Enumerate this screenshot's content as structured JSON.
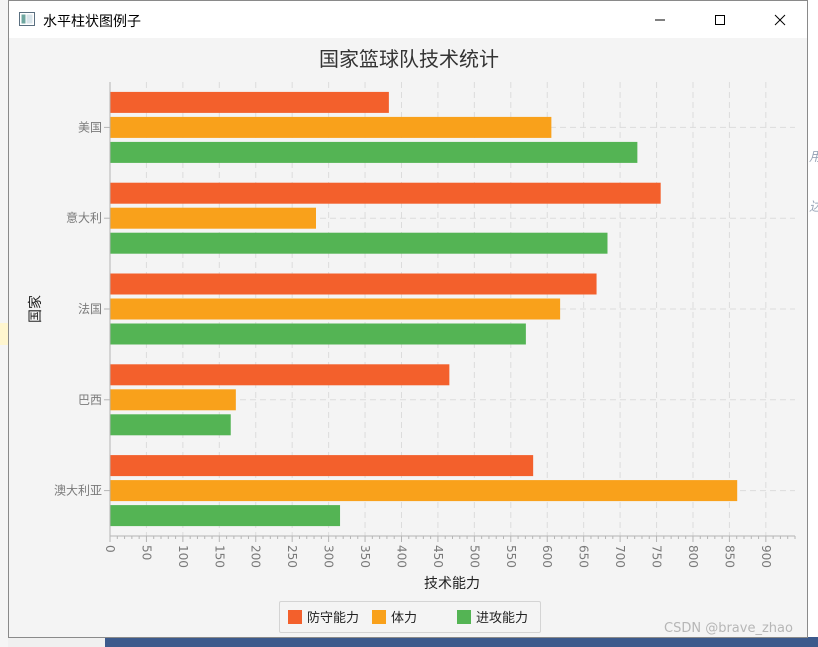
{
  "window": {
    "title": "水平柱状图例子",
    "icon": "app-window-icon",
    "controls": [
      "minimize-icon",
      "maximize-icon",
      "close-icon"
    ]
  },
  "chart_data": {
    "type": "bar",
    "orientation": "horizontal",
    "title": "国家篮球队技术统计",
    "xlabel": "技术能力",
    "ylabel": "国家",
    "categories": [
      "澳大利亚",
      "巴西",
      "法国",
      "意大利",
      "美国"
    ],
    "series": [
      {
        "name": "防守能力",
        "color": "#f3602c",
        "values": [
          580,
          465,
          667,
          755,
          382
        ]
      },
      {
        "name": "体力",
        "color": "#f9a11b",
        "values": [
          860,
          172,
          617,
          282,
          605
        ]
      },
      {
        "name": "进攻能力",
        "color": "#54b454",
        "values": [
          315,
          165,
          570,
          682,
          723
        ]
      }
    ],
    "xlim": [
      0,
      940
    ],
    "xticks": [
      0,
      50,
      100,
      150,
      200,
      250,
      300,
      350,
      400,
      450,
      500,
      550,
      600,
      650,
      700,
      750,
      800,
      850,
      900
    ],
    "grid": true,
    "legend_position": "bottom"
  },
  "watermark": "CSDN @brave_zhao",
  "background_glyphs": [
    "用",
    "达"
  ]
}
